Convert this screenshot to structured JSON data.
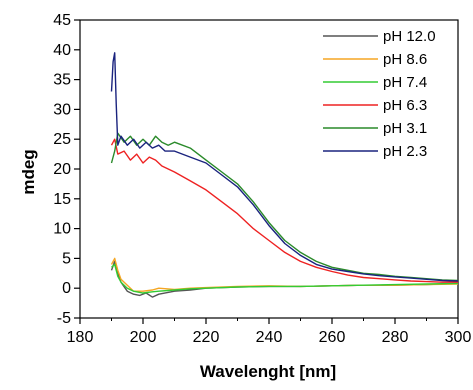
{
  "chart_data": {
    "type": "line",
    "title": "",
    "xlabel": "Wavelenght [nm]",
    "ylabel": "mdeg",
    "xlim": [
      180,
      300
    ],
    "ylim": [
      -5,
      45
    ],
    "xticks": [
      180,
      200,
      220,
      240,
      260,
      280,
      300
    ],
    "yticks": [
      -5,
      0,
      5,
      10,
      15,
      20,
      25,
      30,
      35,
      40,
      45
    ],
    "grid": false,
    "legend_position": "top-right",
    "series": [
      {
        "name": "pH 12.0",
        "color": "#555555",
        "x": [
          190,
          191,
          192,
          193,
          195,
          197,
          199,
          201,
          203,
          205,
          210,
          215,
          220,
          230,
          240,
          250,
          260,
          270,
          280,
          290,
          300
        ],
        "y": [
          3.0,
          4.5,
          2.5,
          1.0,
          -0.5,
          -1.0,
          -1.2,
          -0.8,
          -1.5,
          -1.0,
          -0.5,
          -0.3,
          0.0,
          0.2,
          0.3,
          0.3,
          0.4,
          0.5,
          0.5,
          0.6,
          0.8
        ]
      },
      {
        "name": "pH 8.6",
        "color": "#f5a623",
        "x": [
          190,
          191,
          192,
          193,
          195,
          197,
          200,
          203,
          205,
          210,
          215,
          220,
          230,
          240,
          250,
          260,
          270,
          280,
          290,
          300
        ],
        "y": [
          4.0,
          5.0,
          3.0,
          1.5,
          0.5,
          -0.5,
          -0.5,
          -0.3,
          0.0,
          -0.2,
          0.0,
          0.1,
          0.3,
          0.4,
          0.3,
          0.4,
          0.5,
          0.5,
          0.6,
          0.7
        ]
      },
      {
        "name": "pH 7.4",
        "color": "#33cc33",
        "x": [
          190,
          191,
          192,
          193,
          195,
          197,
          200,
          203,
          205,
          210,
          215,
          220,
          230,
          240,
          250,
          260,
          270,
          280,
          290,
          300
        ],
        "y": [
          3.5,
          4.0,
          2.0,
          1.0,
          0.0,
          -0.5,
          -0.8,
          -0.6,
          -0.5,
          -0.3,
          -0.1,
          0.0,
          0.2,
          0.3,
          0.3,
          0.4,
          0.5,
          0.6,
          0.7,
          0.8
        ]
      },
      {
        "name": "pH 6.3",
        "color": "#ee2222",
        "x": [
          190,
          191,
          192,
          194,
          196,
          198,
          200,
          202,
          204,
          206,
          208,
          210,
          215,
          220,
          225,
          230,
          235,
          240,
          245,
          250,
          255,
          260,
          265,
          270,
          275,
          280,
          285,
          290,
          295,
          300
        ],
        "y": [
          24.0,
          25.0,
          22.5,
          23.0,
          21.5,
          22.5,
          21.0,
          22.0,
          21.5,
          20.5,
          20.0,
          19.5,
          18.0,
          16.5,
          14.5,
          12.5,
          10.0,
          8.0,
          6.0,
          4.5,
          3.5,
          2.8,
          2.2,
          1.8,
          1.6,
          1.4,
          1.2,
          1.1,
          1.0,
          1.0
        ]
      },
      {
        "name": "pH 3.1",
        "color": "#2a8a2a",
        "x": [
          190,
          191,
          192,
          194,
          196,
          198,
          200,
          202,
          204,
          206,
          208,
          210,
          215,
          220,
          225,
          230,
          235,
          240,
          245,
          250,
          255,
          260,
          265,
          270,
          275,
          280,
          285,
          290,
          295,
          300
        ],
        "y": [
          21.0,
          23.0,
          26.0,
          24.5,
          25.5,
          24.0,
          25.0,
          24.0,
          25.5,
          24.5,
          24.0,
          24.5,
          23.5,
          21.5,
          19.5,
          17.5,
          14.5,
          11.0,
          8.0,
          6.0,
          4.5,
          3.5,
          3.0,
          2.5,
          2.3,
          2.0,
          1.8,
          1.6,
          1.4,
          1.3
        ]
      },
      {
        "name": "pH 2.3",
        "color": "#1a237e",
        "x": [
          190,
          190.5,
          191,
          191.5,
          192,
          193,
          195,
          197,
          199,
          201,
          203,
          205,
          207,
          210,
          215,
          220,
          225,
          230,
          235,
          240,
          245,
          250,
          255,
          260,
          265,
          270,
          275,
          280,
          285,
          290,
          295,
          300
        ],
        "y": [
          33.0,
          38.0,
          39.5,
          31.0,
          24.0,
          25.5,
          24.0,
          25.0,
          23.5,
          24.5,
          23.5,
          24.0,
          23.0,
          23.0,
          22.0,
          21.0,
          19.0,
          17.0,
          14.0,
          10.5,
          7.5,
          5.5,
          4.0,
          3.2,
          2.8,
          2.4,
          2.1,
          1.9,
          1.7,
          1.5,
          1.3,
          1.2
        ]
      }
    ]
  }
}
